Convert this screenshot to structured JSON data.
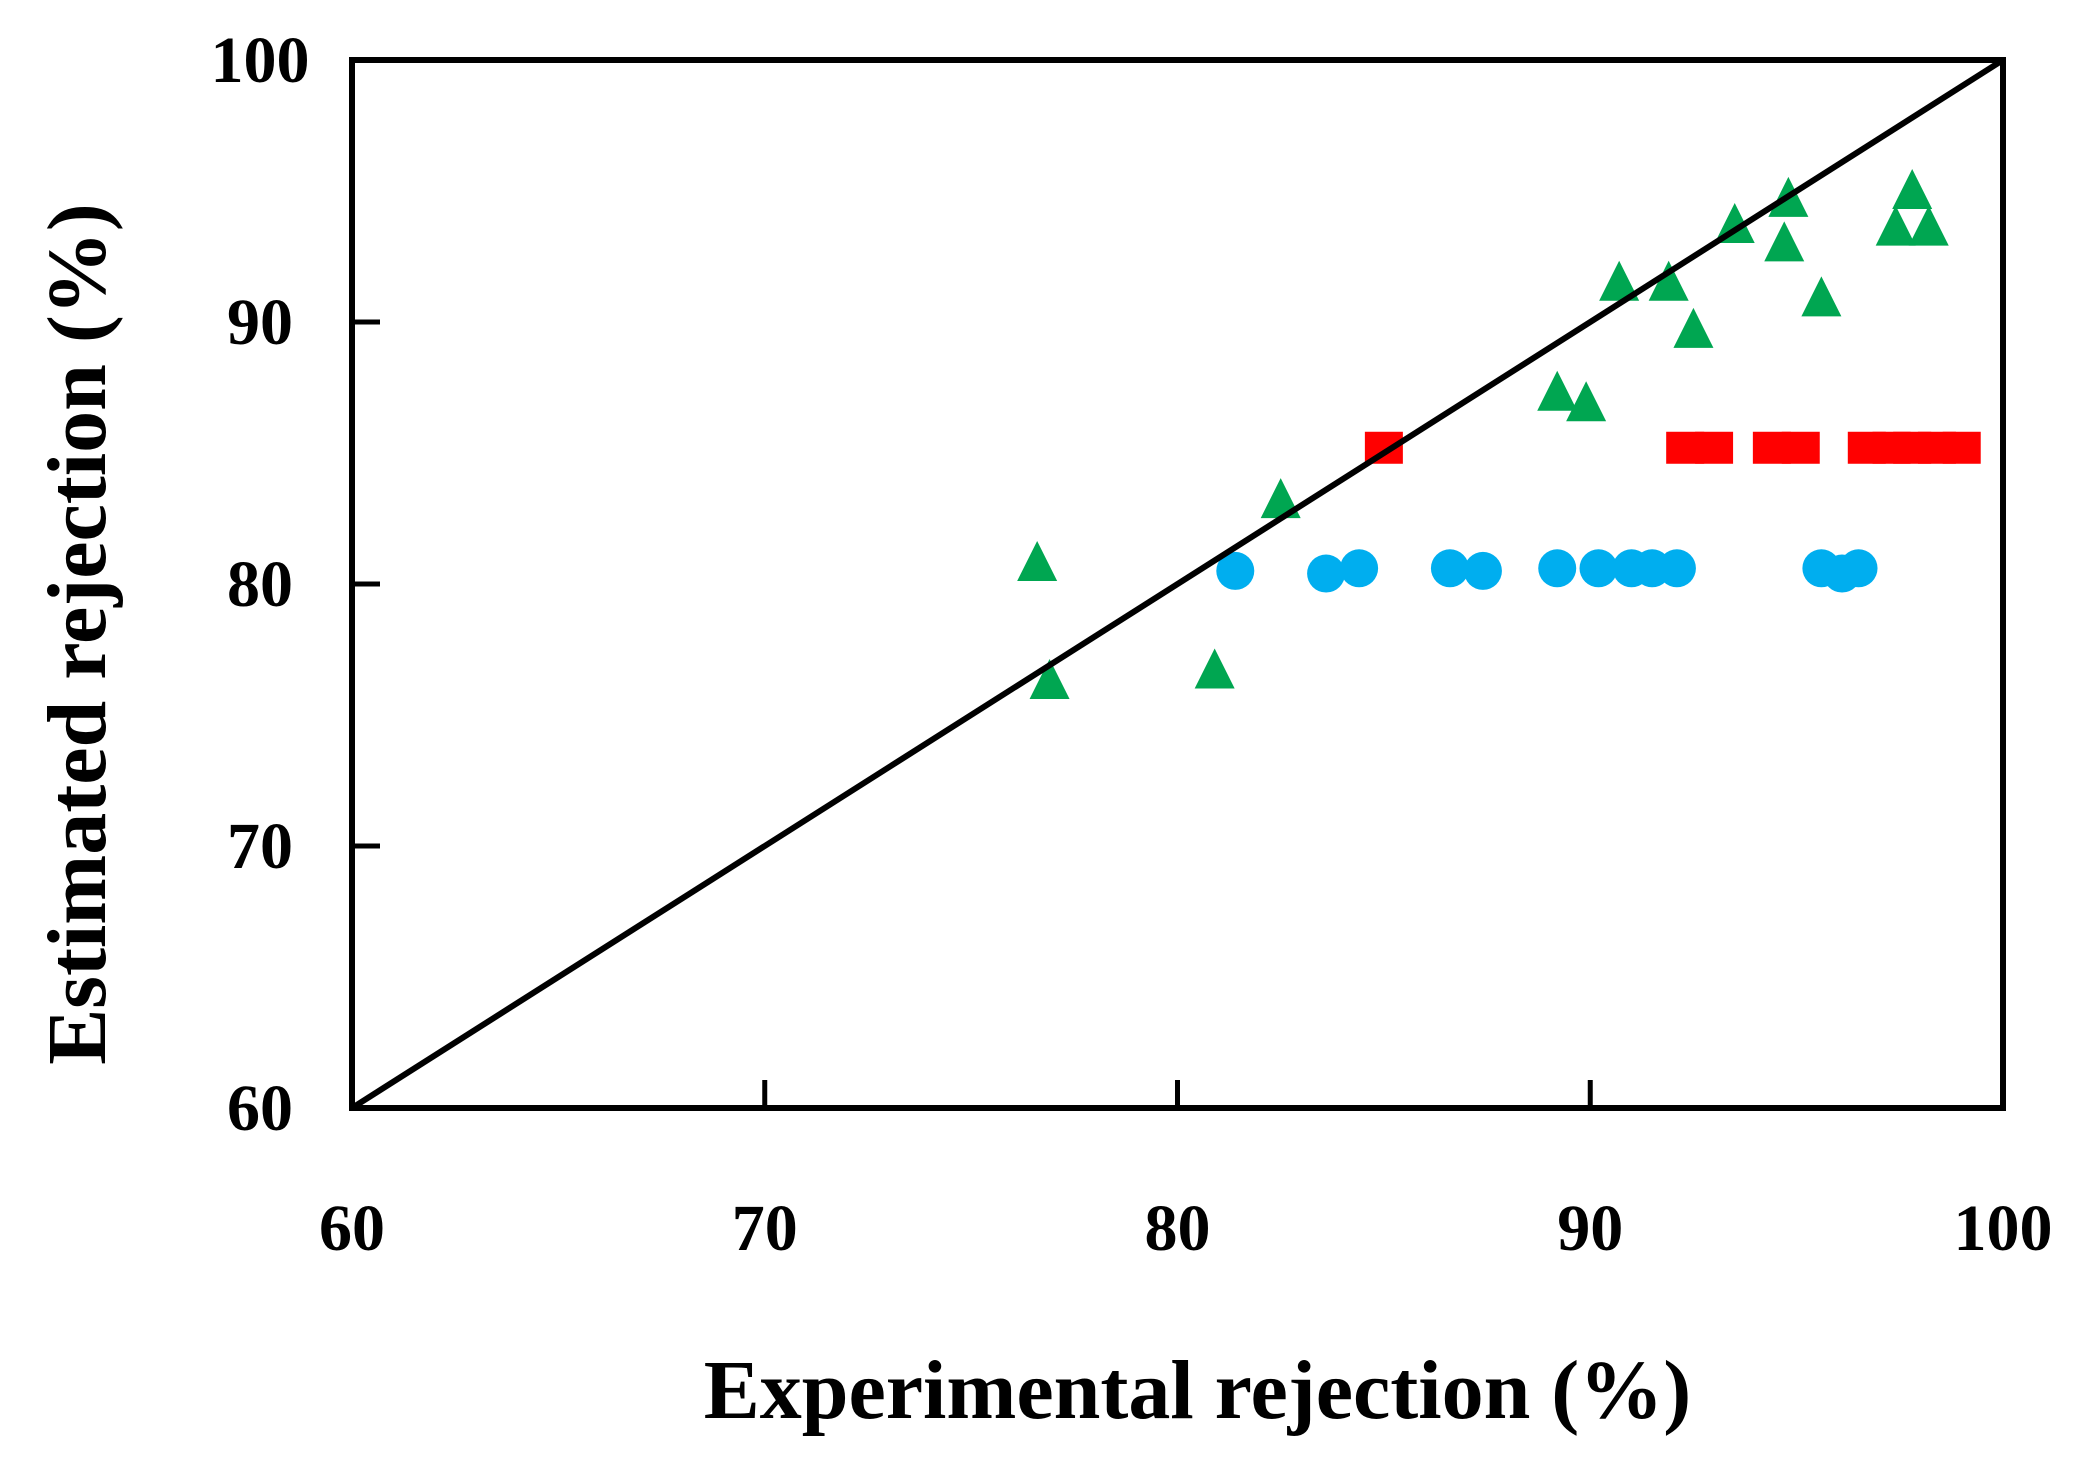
{
  "chart_data": {
    "type": "scatter",
    "title": "",
    "xlabel": "Experimental rejection (%)",
    "ylabel": "Estimated rejection (%)",
    "xlim": [
      60,
      100
    ],
    "ylim": [
      60,
      100
    ],
    "xticks": [
      60,
      70,
      80,
      90,
      100
    ],
    "yticks": [
      60,
      70,
      80,
      90,
      100
    ],
    "grid": false,
    "legend": "none",
    "reference_line": {
      "name": "y = x",
      "x": [
        60,
        100
      ],
      "y": [
        60,
        100
      ],
      "color": "#000000"
    },
    "series": [
      {
        "name": "triangle-series",
        "marker": "triangle",
        "color": "#00A651",
        "x": [
          76.6,
          76.9,
          80.9,
          82.5,
          89.2,
          89.9,
          90.7,
          91.9,
          92.5,
          93.5,
          94.7,
          94.8,
          95.6,
          97.4,
          97.8,
          98.2
        ],
        "y": [
          80.8,
          76.3,
          76.7,
          83.2,
          87.3,
          86.9,
          91.5,
          91.5,
          89.7,
          93.7,
          93.0,
          94.7,
          90.9,
          93.6,
          95.0,
          93.6
        ]
      },
      {
        "name": "square-series",
        "marker": "square",
        "color": "#FF0000",
        "x": [
          85.0,
          92.3,
          93.0,
          94.4,
          95.1,
          96.7,
          97.3,
          97.8,
          98.4,
          99.0
        ],
        "y": [
          85.2,
          85.2,
          85.2,
          85.2,
          85.2,
          85.2,
          85.2,
          85.2,
          85.2,
          85.2
        ]
      },
      {
        "name": "circle-series",
        "marker": "circle",
        "color": "#00AEEF",
        "x": [
          81.4,
          83.6,
          84.4,
          86.6,
          87.4,
          89.2,
          90.2,
          91.0,
          91.5,
          92.1,
          95.6,
          96.1,
          96.5
        ],
        "y": [
          80.5,
          80.4,
          80.6,
          80.6,
          80.5,
          80.6,
          80.6,
          80.6,
          80.6,
          80.6,
          80.6,
          80.4,
          80.6
        ]
      }
    ]
  }
}
